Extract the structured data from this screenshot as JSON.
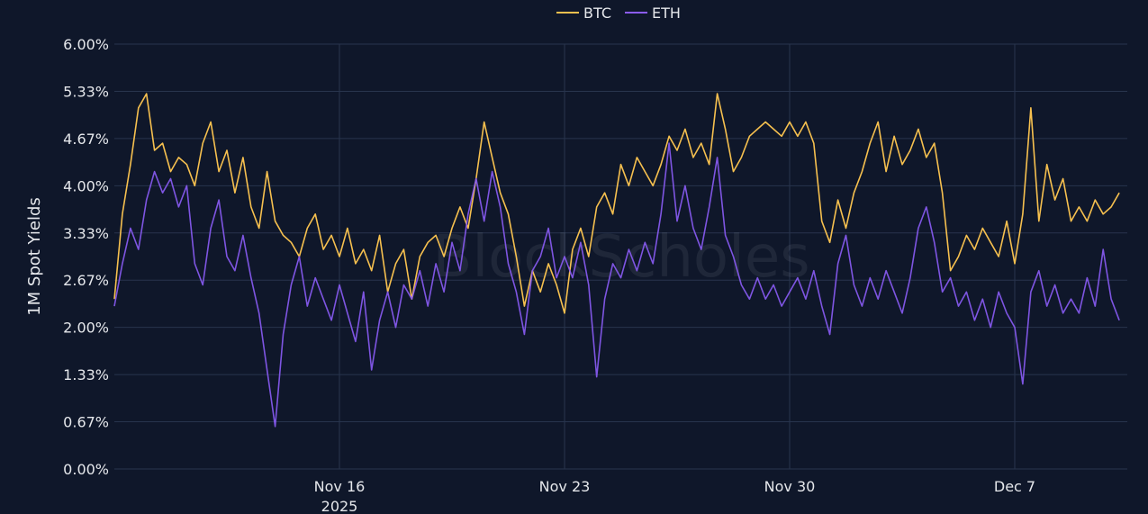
{
  "chart_data": {
    "type": "line",
    "ylabel": "1M Spot Yields",
    "yticks": [
      "0.00%",
      "0.67%",
      "1.33%",
      "2.00%",
      "2.67%",
      "3.33%",
      "4.00%",
      "4.67%",
      "5.33%",
      "6.00%"
    ],
    "ylim": [
      0,
      6
    ],
    "xticks": [
      {
        "date": "2025-11-16",
        "label": "Nov 16",
        "sublabel": "2025"
      },
      {
        "date": "2025-11-23",
        "label": "Nov 23"
      },
      {
        "date": "2025-11-30",
        "label": "Nov 30"
      },
      {
        "date": "2025-12-07",
        "label": "Dec 7"
      }
    ],
    "xlim": [
      "2025-11-09T00:00",
      "2025-12-10T12:00"
    ],
    "legend_position": "top-center",
    "grid": true,
    "watermark": "BlockScholes",
    "series": [
      {
        "name": "BTC",
        "color": "#f6c04f",
        "points": [
          [
            "2025-11-09T00:00",
            2.4
          ],
          [
            "2025-11-09T06:00",
            3.6
          ],
          [
            "2025-11-09T12:00",
            4.3
          ],
          [
            "2025-11-09T18:00",
            5.1
          ],
          [
            "2025-11-10T00:00",
            5.3
          ],
          [
            "2025-11-10T06:00",
            4.5
          ],
          [
            "2025-11-10T12:00",
            4.6
          ],
          [
            "2025-11-10T18:00",
            4.2
          ],
          [
            "2025-11-11T00:00",
            4.4
          ],
          [
            "2025-11-11T06:00",
            4.3
          ],
          [
            "2025-11-11T12:00",
            4.0
          ],
          [
            "2025-11-11T18:00",
            4.6
          ],
          [
            "2025-11-12T00:00",
            4.9
          ],
          [
            "2025-11-12T06:00",
            4.2
          ],
          [
            "2025-11-12T12:00",
            4.5
          ],
          [
            "2025-11-12T18:00",
            3.9
          ],
          [
            "2025-11-13T00:00",
            4.4
          ],
          [
            "2025-11-13T06:00",
            3.7
          ],
          [
            "2025-11-13T12:00",
            3.4
          ],
          [
            "2025-11-13T18:00",
            4.2
          ],
          [
            "2025-11-14T00:00",
            3.5
          ],
          [
            "2025-11-14T06:00",
            3.3
          ],
          [
            "2025-11-14T12:00",
            3.2
          ],
          [
            "2025-11-14T18:00",
            3.0
          ],
          [
            "2025-11-15T00:00",
            3.4
          ],
          [
            "2025-11-15T06:00",
            3.6
          ],
          [
            "2025-11-15T12:00",
            3.1
          ],
          [
            "2025-11-15T18:00",
            3.3
          ],
          [
            "2025-11-16T00:00",
            3.0
          ],
          [
            "2025-11-16T06:00",
            3.4
          ],
          [
            "2025-11-16T12:00",
            2.9
          ],
          [
            "2025-11-16T18:00",
            3.1
          ],
          [
            "2025-11-17T00:00",
            2.8
          ],
          [
            "2025-11-17T06:00",
            3.3
          ],
          [
            "2025-11-17T12:00",
            2.5
          ],
          [
            "2025-11-17T18:00",
            2.9
          ],
          [
            "2025-11-18T00:00",
            3.1
          ],
          [
            "2025-11-18T06:00",
            2.4
          ],
          [
            "2025-11-18T12:00",
            3.0
          ],
          [
            "2025-11-18T18:00",
            3.2
          ],
          [
            "2025-11-19T00:00",
            3.3
          ],
          [
            "2025-11-19T06:00",
            3.0
          ],
          [
            "2025-11-19T12:00",
            3.4
          ],
          [
            "2025-11-19T18:00",
            3.7
          ],
          [
            "2025-11-20T00:00",
            3.4
          ],
          [
            "2025-11-20T06:00",
            4.1
          ],
          [
            "2025-11-20T12:00",
            4.9
          ],
          [
            "2025-11-20T18:00",
            4.4
          ],
          [
            "2025-11-21T00:00",
            3.9
          ],
          [
            "2025-11-21T06:00",
            3.6
          ],
          [
            "2025-11-21T12:00",
            3.0
          ],
          [
            "2025-11-21T18:00",
            2.3
          ],
          [
            "2025-11-22T00:00",
            2.8
          ],
          [
            "2025-11-22T06:00",
            2.5
          ],
          [
            "2025-11-22T12:00",
            2.9
          ],
          [
            "2025-11-22T18:00",
            2.6
          ],
          [
            "2025-11-23T00:00",
            2.2
          ],
          [
            "2025-11-23T06:00",
            3.1
          ],
          [
            "2025-11-23T12:00",
            3.4
          ],
          [
            "2025-11-23T18:00",
            3.0
          ],
          [
            "2025-11-24T00:00",
            3.7
          ],
          [
            "2025-11-24T06:00",
            3.9
          ],
          [
            "2025-11-24T12:00",
            3.6
          ],
          [
            "2025-11-24T18:00",
            4.3
          ],
          [
            "2025-11-25T00:00",
            4.0
          ],
          [
            "2025-11-25T06:00",
            4.4
          ],
          [
            "2025-11-25T12:00",
            4.2
          ],
          [
            "2025-11-25T18:00",
            4.0
          ],
          [
            "2025-11-26T00:00",
            4.3
          ],
          [
            "2025-11-26T06:00",
            4.7
          ],
          [
            "2025-11-26T12:00",
            4.5
          ],
          [
            "2025-11-26T18:00",
            4.8
          ],
          [
            "2025-11-27T00:00",
            4.4
          ],
          [
            "2025-11-27T06:00",
            4.6
          ],
          [
            "2025-11-27T12:00",
            4.3
          ],
          [
            "2025-11-27T18:00",
            5.3
          ],
          [
            "2025-11-28T00:00",
            4.8
          ],
          [
            "2025-11-28T06:00",
            4.2
          ],
          [
            "2025-11-28T12:00",
            4.4
          ],
          [
            "2025-11-28T18:00",
            4.7
          ],
          [
            "2025-11-29T00:00",
            4.8
          ],
          [
            "2025-11-29T06:00",
            4.9
          ],
          [
            "2025-11-29T12:00",
            4.8
          ],
          [
            "2025-11-29T18:00",
            4.7
          ],
          [
            "2025-11-30T00:00",
            4.9
          ],
          [
            "2025-11-30T06:00",
            4.7
          ],
          [
            "2025-11-30T12:00",
            4.9
          ],
          [
            "2025-11-30T18:00",
            4.6
          ],
          [
            "2025-12-01T00:00",
            3.5
          ],
          [
            "2025-12-01T06:00",
            3.2
          ],
          [
            "2025-12-01T12:00",
            3.8
          ],
          [
            "2025-12-01T18:00",
            3.4
          ],
          [
            "2025-12-02T00:00",
            3.9
          ],
          [
            "2025-12-02T06:00",
            4.2
          ],
          [
            "2025-12-02T12:00",
            4.6
          ],
          [
            "2025-12-02T18:00",
            4.9
          ],
          [
            "2025-12-03T00:00",
            4.2
          ],
          [
            "2025-12-03T06:00",
            4.7
          ],
          [
            "2025-12-03T12:00",
            4.3
          ],
          [
            "2025-12-03T18:00",
            4.5
          ],
          [
            "2025-12-04T00:00",
            4.8
          ],
          [
            "2025-12-04T06:00",
            4.4
          ],
          [
            "2025-12-04T12:00",
            4.6
          ],
          [
            "2025-12-04T18:00",
            3.9
          ],
          [
            "2025-12-05T00:00",
            2.8
          ],
          [
            "2025-12-05T06:00",
            3.0
          ],
          [
            "2025-12-05T12:00",
            3.3
          ],
          [
            "2025-12-05T18:00",
            3.1
          ],
          [
            "2025-12-06T00:00",
            3.4
          ],
          [
            "2025-12-06T06:00",
            3.2
          ],
          [
            "2025-12-06T12:00",
            3.0
          ],
          [
            "2025-12-06T18:00",
            3.5
          ],
          [
            "2025-12-07T00:00",
            2.9
          ],
          [
            "2025-12-07T06:00",
            3.6
          ],
          [
            "2025-12-07T12:00",
            5.1
          ],
          [
            "2025-12-07T18:00",
            3.5
          ],
          [
            "2025-12-08T00:00",
            4.3
          ],
          [
            "2025-12-08T06:00",
            3.8
          ],
          [
            "2025-12-08T12:00",
            4.1
          ],
          [
            "2025-12-08T18:00",
            3.5
          ],
          [
            "2025-12-09T00:00",
            3.7
          ],
          [
            "2025-12-09T06:00",
            3.5
          ],
          [
            "2025-12-09T12:00",
            3.8
          ],
          [
            "2025-12-09T18:00",
            3.6
          ],
          [
            "2025-12-10T00:00",
            3.7
          ],
          [
            "2025-12-10T06:00",
            3.9
          ]
        ]
      },
      {
        "name": "ETH",
        "color": "#8b5cf6",
        "points": [
          [
            "2025-11-09T00:00",
            2.3
          ],
          [
            "2025-11-09T06:00",
            2.9
          ],
          [
            "2025-11-09T12:00",
            3.4
          ],
          [
            "2025-11-09T18:00",
            3.1
          ],
          [
            "2025-11-10T00:00",
            3.8
          ],
          [
            "2025-11-10T06:00",
            4.2
          ],
          [
            "2025-11-10T12:00",
            3.9
          ],
          [
            "2025-11-10T18:00",
            4.1
          ],
          [
            "2025-11-11T00:00",
            3.7
          ],
          [
            "2025-11-11T06:00",
            4.0
          ],
          [
            "2025-11-11T12:00",
            2.9
          ],
          [
            "2025-11-11T18:00",
            2.6
          ],
          [
            "2025-11-12T00:00",
            3.4
          ],
          [
            "2025-11-12T06:00",
            3.8
          ],
          [
            "2025-11-12T12:00",
            3.0
          ],
          [
            "2025-11-12T18:00",
            2.8
          ],
          [
            "2025-11-13T00:00",
            3.3
          ],
          [
            "2025-11-13T06:00",
            2.7
          ],
          [
            "2025-11-13T12:00",
            2.2
          ],
          [
            "2025-11-13T18:00",
            1.4
          ],
          [
            "2025-11-14T00:00",
            0.6
          ],
          [
            "2025-11-14T06:00",
            1.9
          ],
          [
            "2025-11-14T12:00",
            2.6
          ],
          [
            "2025-11-14T18:00",
            3.0
          ],
          [
            "2025-11-15T00:00",
            2.3
          ],
          [
            "2025-11-15T06:00",
            2.7
          ],
          [
            "2025-11-15T12:00",
            2.4
          ],
          [
            "2025-11-15T18:00",
            2.1
          ],
          [
            "2025-11-16T00:00",
            2.6
          ],
          [
            "2025-11-16T06:00",
            2.2
          ],
          [
            "2025-11-16T12:00",
            1.8
          ],
          [
            "2025-11-16T18:00",
            2.5
          ],
          [
            "2025-11-17T00:00",
            1.4
          ],
          [
            "2025-11-17T06:00",
            2.1
          ],
          [
            "2025-11-17T12:00",
            2.5
          ],
          [
            "2025-11-17T18:00",
            2.0
          ],
          [
            "2025-11-18T00:00",
            2.6
          ],
          [
            "2025-11-18T06:00",
            2.4
          ],
          [
            "2025-11-18T12:00",
            2.8
          ],
          [
            "2025-11-18T18:00",
            2.3
          ],
          [
            "2025-11-19T00:00",
            2.9
          ],
          [
            "2025-11-19T06:00",
            2.5
          ],
          [
            "2025-11-19T12:00",
            3.2
          ],
          [
            "2025-11-19T18:00",
            2.8
          ],
          [
            "2025-11-20T00:00",
            3.6
          ],
          [
            "2025-11-20T06:00",
            4.1
          ],
          [
            "2025-11-20T12:00",
            3.5
          ],
          [
            "2025-11-20T18:00",
            4.2
          ],
          [
            "2025-11-21T00:00",
            3.7
          ],
          [
            "2025-11-21T06:00",
            2.9
          ],
          [
            "2025-11-21T12:00",
            2.5
          ],
          [
            "2025-11-21T18:00",
            1.9
          ],
          [
            "2025-11-22T00:00",
            2.8
          ],
          [
            "2025-11-22T06:00",
            3.0
          ],
          [
            "2025-11-22T12:00",
            3.4
          ],
          [
            "2025-11-22T18:00",
            2.7
          ],
          [
            "2025-11-23T00:00",
            3.0
          ],
          [
            "2025-11-23T06:00",
            2.7
          ],
          [
            "2025-11-23T12:00",
            3.2
          ],
          [
            "2025-11-23T18:00",
            2.6
          ],
          [
            "2025-11-24T00:00",
            1.3
          ],
          [
            "2025-11-24T06:00",
            2.4
          ],
          [
            "2025-11-24T12:00",
            2.9
          ],
          [
            "2025-11-24T18:00",
            2.7
          ],
          [
            "2025-11-25T00:00",
            3.1
          ],
          [
            "2025-11-25T06:00",
            2.8
          ],
          [
            "2025-11-25T12:00",
            3.2
          ],
          [
            "2025-11-25T18:00",
            2.9
          ],
          [
            "2025-11-26T00:00",
            3.6
          ],
          [
            "2025-11-26T06:00",
            4.6
          ],
          [
            "2025-11-26T12:00",
            3.5
          ],
          [
            "2025-11-26T18:00",
            4.0
          ],
          [
            "2025-11-27T00:00",
            3.4
          ],
          [
            "2025-11-27T06:00",
            3.1
          ],
          [
            "2025-11-27T12:00",
            3.7
          ],
          [
            "2025-11-27T18:00",
            4.4
          ],
          [
            "2025-11-28T00:00",
            3.3
          ],
          [
            "2025-11-28T06:00",
            3.0
          ],
          [
            "2025-11-28T12:00",
            2.6
          ],
          [
            "2025-11-28T18:00",
            2.4
          ],
          [
            "2025-11-29T00:00",
            2.7
          ],
          [
            "2025-11-29T06:00",
            2.4
          ],
          [
            "2025-11-29T12:00",
            2.6
          ],
          [
            "2025-11-29T18:00",
            2.3
          ],
          [
            "2025-11-30T00:00",
            2.5
          ],
          [
            "2025-11-30T06:00",
            2.7
          ],
          [
            "2025-11-30T12:00",
            2.4
          ],
          [
            "2025-11-30T18:00",
            2.8
          ],
          [
            "2025-12-01T00:00",
            2.3
          ],
          [
            "2025-12-01T06:00",
            1.9
          ],
          [
            "2025-12-01T12:00",
            2.9
          ],
          [
            "2025-12-01T18:00",
            3.3
          ],
          [
            "2025-12-02T00:00",
            2.6
          ],
          [
            "2025-12-02T06:00",
            2.3
          ],
          [
            "2025-12-02T12:00",
            2.7
          ],
          [
            "2025-12-02T18:00",
            2.4
          ],
          [
            "2025-12-03T00:00",
            2.8
          ],
          [
            "2025-12-03T06:00",
            2.5
          ],
          [
            "2025-12-03T12:00",
            2.2
          ],
          [
            "2025-12-03T18:00",
            2.7
          ],
          [
            "2025-12-04T00:00",
            3.4
          ],
          [
            "2025-12-04T06:00",
            3.7
          ],
          [
            "2025-12-04T12:00",
            3.2
          ],
          [
            "2025-12-04T18:00",
            2.5
          ],
          [
            "2025-12-05T00:00",
            2.7
          ],
          [
            "2025-12-05T06:00",
            2.3
          ],
          [
            "2025-12-05T12:00",
            2.5
          ],
          [
            "2025-12-05T18:00",
            2.1
          ],
          [
            "2025-12-06T00:00",
            2.4
          ],
          [
            "2025-12-06T06:00",
            2.0
          ],
          [
            "2025-12-06T12:00",
            2.5
          ],
          [
            "2025-12-06T18:00",
            2.2
          ],
          [
            "2025-12-07T00:00",
            2.0
          ],
          [
            "2025-12-07T06:00",
            1.2
          ],
          [
            "2025-12-07T12:00",
            2.5
          ],
          [
            "2025-12-07T18:00",
            2.8
          ],
          [
            "2025-12-08T00:00",
            2.3
          ],
          [
            "2025-12-08T06:00",
            2.6
          ],
          [
            "2025-12-08T12:00",
            2.2
          ],
          [
            "2025-12-08T18:00",
            2.4
          ],
          [
            "2025-12-09T00:00",
            2.2
          ],
          [
            "2025-12-09T06:00",
            2.7
          ],
          [
            "2025-12-09T12:00",
            2.3
          ],
          [
            "2025-12-09T18:00",
            3.1
          ],
          [
            "2025-12-10T00:00",
            2.4
          ],
          [
            "2025-12-10T06:00",
            2.1
          ]
        ]
      }
    ]
  }
}
